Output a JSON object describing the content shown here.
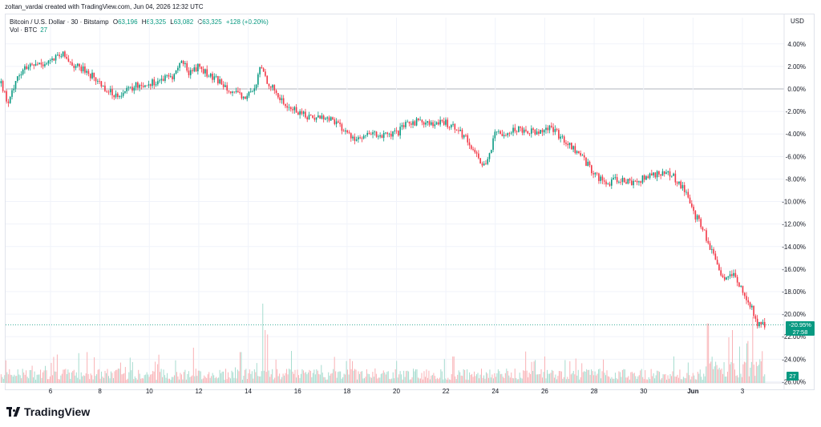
{
  "header": {
    "credit": "zoltan_vardai created with TradingView.com, Jun 04, 2026 12:32 UTC"
  },
  "legend": {
    "symbol": "Bitcoin / U.S. Dollar · 30 · Bitstamp",
    "open_label": "O",
    "open": "63,196",
    "high_label": "H",
    "high": "63,325",
    "low_label": "L",
    "low": "63,082",
    "close_label": "C",
    "close": "63,325",
    "change": "+128 (+0.20%)",
    "vol_label": "Vol · BTC",
    "vol_value": "27"
  },
  "currency": "USD",
  "last_price_tag": {
    "pct": "-20.95%",
    "countdown": "27:58"
  },
  "volume_tag": "27",
  "brand": "TradingView",
  "colors": {
    "up": "#089981",
    "down": "#f23645",
    "vol_up": "#a6dccf",
    "vol_down": "#f9b1b5",
    "grid": "#f0f3fa"
  },
  "chart_data": {
    "type": "candlestick",
    "y_unit": "percent change",
    "ylim": [
      -26,
      5
    ],
    "y_ticks": [
      "4.00%",
      "2.00%",
      "0.00%",
      "-2.00%",
      "-4.00%",
      "-6.00%",
      "-8.00%",
      "-10.00%",
      "-12.00%",
      "-14.00%",
      "-16.00%",
      "-18.00%",
      "-20.00%",
      "-22.00%",
      "-24.00%",
      "-26.00%"
    ],
    "x_ticks": [
      "6",
      "8",
      "10",
      "12",
      "14",
      "16",
      "18",
      "20",
      "22",
      "24",
      "26",
      "28",
      "30",
      "Jun",
      "3"
    ],
    "last_value": -20.95,
    "path_x_days": [
      4.0,
      4.3,
      4.6,
      5.0,
      5.5,
      6.0,
      6.5,
      7.0,
      7.5,
      8.0,
      8.5,
      9.0,
      9.5,
      10.0,
      10.5,
      11.0,
      11.3,
      11.6,
      12.0,
      12.5,
      13.0,
      13.5,
      13.8,
      14.0,
      14.3,
      14.5,
      14.7,
      15.0,
      15.5,
      16.0,
      16.5,
      17.0,
      17.5,
      18.0,
      18.5,
      19.0,
      19.5,
      20.0,
      20.5,
      21.0,
      21.5,
      22.0,
      22.5,
      23.0,
      23.3,
      23.5,
      23.8,
      24.0,
      24.5,
      25.0,
      25.5,
      26.0,
      26.3,
      26.5,
      27.0,
      27.5,
      28.0,
      28.5,
      29.0,
      29.5,
      30.0,
      30.5,
      31.0,
      31.3,
      31.7,
      32.0,
      32.3,
      32.6,
      33.0,
      33.3,
      33.6,
      34.0,
      34.3,
      34.6,
      34.8
    ],
    "path_values": [
      0.5,
      -1.5,
      1.0,
      1.8,
      2.2,
      2.5,
      3.0,
      2.0,
      1.5,
      0.5,
      -0.5,
      -0.3,
      0.3,
      0.5,
      0.8,
      1.2,
      2.5,
      1.5,
      2.0,
      1.0,
      0.5,
      -0.5,
      -0.8,
      -0.5,
      0.0,
      2.2,
      1.0,
      0.0,
      -1.5,
      -2.0,
      -2.5,
      -2.5,
      -2.8,
      -4.0,
      -4.5,
      -4.0,
      -4.2,
      -4.0,
      -3.0,
      -2.8,
      -3.2,
      -3.0,
      -3.5,
      -5.0,
      -6.0,
      -7.0,
      -5.5,
      -4.0,
      -3.8,
      -3.5,
      -3.8,
      -3.5,
      -3.5,
      -4.0,
      -5.0,
      -6.0,
      -7.5,
      -8.5,
      -8.0,
      -8.3,
      -8.0,
      -7.5,
      -7.5,
      -8.0,
      -9.0,
      -11.0,
      -12.0,
      -13.5,
      -16.0,
      -17.0,
      -16.5,
      -18.0,
      -19.0,
      -21.0,
      -20.95
    ],
    "volume_spikes_days": [
      7.5,
      11.8,
      13.7,
      14.6,
      14.7,
      14.8,
      20.0,
      22.3,
      26.0,
      32.6,
      33.6,
      34.4
    ],
    "volume_spikes_rel": [
      0.35,
      0.4,
      0.35,
      0.9,
      0.6,
      0.55,
      0.25,
      0.3,
      0.3,
      0.45,
      0.4,
      0.5
    ]
  }
}
